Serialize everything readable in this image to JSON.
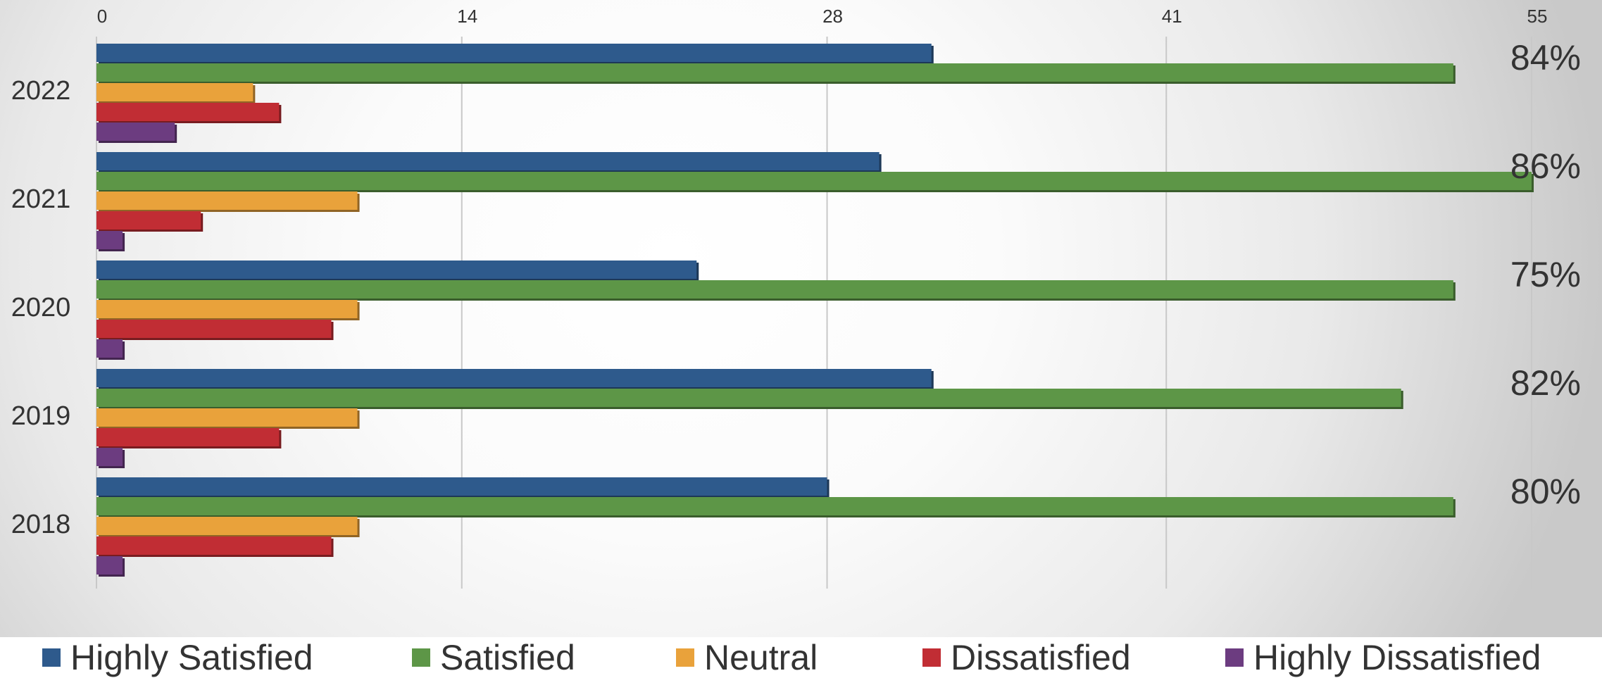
{
  "chart_data": {
    "type": "bar",
    "orientation": "horizontal",
    "title": "",
    "xlabel": "",
    "ylabel": "",
    "xlim": [
      0,
      55
    ],
    "x_ticks": [
      "0",
      "14",
      "28",
      "41",
      "55"
    ],
    "categories": [
      "2022",
      "2021",
      "2020",
      "2019",
      "2018"
    ],
    "grid": true,
    "legend_position": "bottom",
    "series": [
      {
        "name": "Highly Satisfied",
        "color": "#2e5a8c",
        "values": [
          32,
          30,
          23,
          32,
          28
        ]
      },
      {
        "name": "Satisfied",
        "color": "#5d9647",
        "values": [
          52,
          55,
          52,
          50,
          52
        ]
      },
      {
        "name": "Neutral",
        "color": "#e9a23b",
        "values": [
          6,
          10,
          10,
          10,
          10
        ]
      },
      {
        "name": "Dissatisfied",
        "color": "#c12d34",
        "values": [
          7,
          4,
          9,
          7,
          9
        ]
      },
      {
        "name": "Highly Dissatisfied",
        "color": "#6c3c80",
        "values": [
          3,
          1,
          1,
          1,
          1
        ]
      }
    ],
    "annotations": [
      "84%",
      "86%",
      "75%",
      "82%",
      "80%"
    ]
  }
}
